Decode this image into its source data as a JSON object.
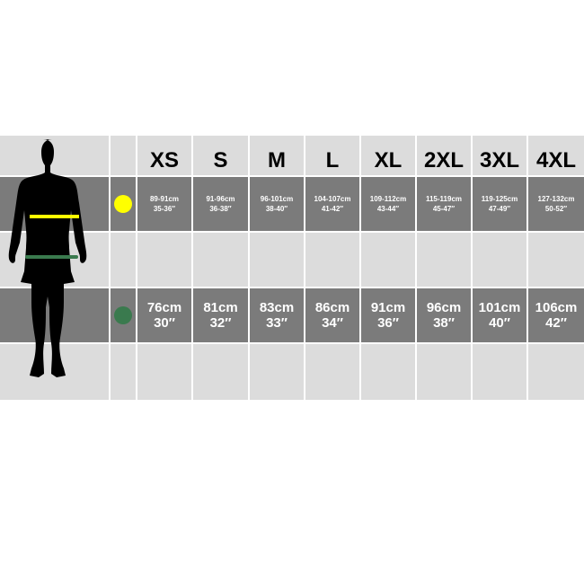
{
  "colors": {
    "chest": "#ffff00",
    "waist": "#3a7a4e",
    "dark_row": "#7b7b7b",
    "light_row": "#dcdcdc"
  },
  "sizes": [
    "XS",
    "S",
    "M",
    "L",
    "XL",
    "2XL",
    "3XL",
    "4XL"
  ],
  "chest": [
    {
      "cm": "89-91cm",
      "in": "35-36″"
    },
    {
      "cm": "91-96cm",
      "in": "36-38″"
    },
    {
      "cm": "96-101cm",
      "in": "38-40″"
    },
    {
      "cm": "104-107cm",
      "in": "41-42″"
    },
    {
      "cm": "109-112cm",
      "in": "43-44″"
    },
    {
      "cm": "115-119cm",
      "in": "45-47″"
    },
    {
      "cm": "119-125cm",
      "in": "47-49″"
    },
    {
      "cm": "127-132cm",
      "in": "50-52″"
    }
  ],
  "waist": [
    {
      "cm": "76cm",
      "in": "30″"
    },
    {
      "cm": "81cm",
      "in": "32″"
    },
    {
      "cm": "83cm",
      "in": "33″"
    },
    {
      "cm": "86cm",
      "in": "34″"
    },
    {
      "cm": "91cm",
      "in": "36″"
    },
    {
      "cm": "96cm",
      "in": "38″"
    },
    {
      "cm": "101cm",
      "in": "40″"
    },
    {
      "cm": "106cm",
      "in": "42″"
    }
  ]
}
